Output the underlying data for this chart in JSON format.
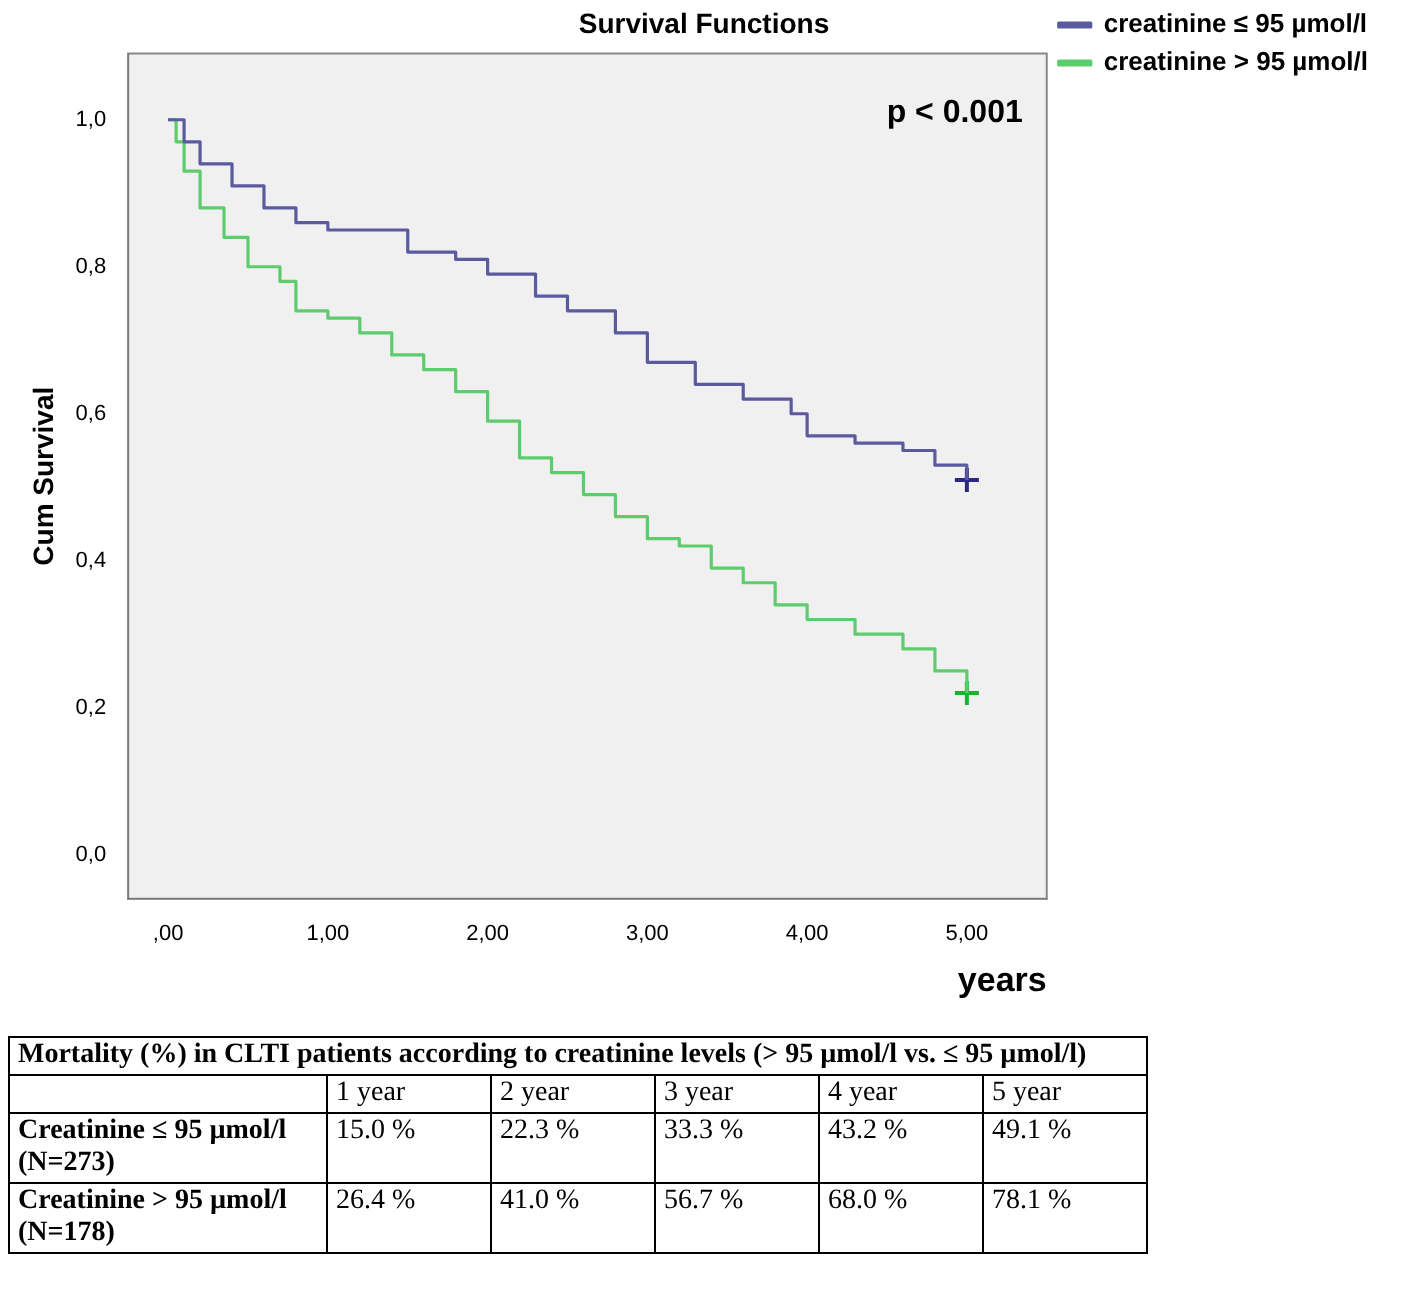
{
  "chart_data": {
    "type": "step",
    "title": "Survival Functions",
    "xlabel": "years",
    "ylabel": "Cum Survival",
    "xlim": [
      -0.25,
      5.5
    ],
    "ylim": [
      -0.06,
      1.09
    ],
    "xticks": [
      {
        "value": 0,
        "label": ",00"
      },
      {
        "value": 1,
        "label": "1,00"
      },
      {
        "value": 2,
        "label": "2,00"
      },
      {
        "value": 3,
        "label": "3,00"
      },
      {
        "value": 4,
        "label": "4,00"
      },
      {
        "value": 5,
        "label": "5,00"
      }
    ],
    "yticks": [
      {
        "value": 0,
        "label": "0,0"
      },
      {
        "value": 0.2,
        "label": "0,2"
      },
      {
        "value": 0.4,
        "label": "0,4"
      },
      {
        "value": 0.6,
        "label": "0,6"
      },
      {
        "value": 0.8,
        "label": "0,8"
      },
      {
        "value": 1,
        "label": "1,0"
      }
    ],
    "legend": "top right",
    "grid": false,
    "series": [
      {
        "name": "creatinine ≤ 95 µmol/l",
        "color": "#5a5aa0",
        "x": [
          0,
          0.1,
          0.2,
          0.4,
          0.6,
          0.8,
          1.0,
          1.5,
          1.8,
          2.0,
          2.3,
          2.5,
          2.8,
          3.0,
          3.3,
          3.6,
          3.9,
          4.0,
          4.3,
          4.6,
          4.8,
          5.0
        ],
        "values": [
          1.0,
          0.97,
          0.94,
          0.91,
          0.88,
          0.86,
          0.85,
          0.82,
          0.81,
          0.79,
          0.76,
          0.74,
          0.71,
          0.67,
          0.64,
          0.62,
          0.6,
          0.57,
          0.56,
          0.55,
          0.53,
          0.51
        ]
      },
      {
        "name": "creatinine > 95 µmol/l",
        "color": "#5ccc6c",
        "x": [
          0,
          0.05,
          0.1,
          0.2,
          0.35,
          0.5,
          0.7,
          0.8,
          1.0,
          1.2,
          1.4,
          1.6,
          1.8,
          2.0,
          2.2,
          2.4,
          2.6,
          2.8,
          3.0,
          3.2,
          3.4,
          3.6,
          3.8,
          4.0,
          4.3,
          4.6,
          4.8,
          5.0
        ],
        "values": [
          1.0,
          0.97,
          0.93,
          0.88,
          0.84,
          0.8,
          0.78,
          0.74,
          0.73,
          0.71,
          0.68,
          0.66,
          0.63,
          0.59,
          0.54,
          0.52,
          0.49,
          0.46,
          0.43,
          0.42,
          0.39,
          0.37,
          0.34,
          0.32,
          0.3,
          0.28,
          0.25,
          0.22
        ]
      },
      {
        "type": "scatter",
        "marker": "cross",
        "color": "#2a2a80",
        "x": [
          5.0
        ],
        "values": [
          0.51
        ]
      },
      {
        "type": "scatter",
        "marker": "cross",
        "color": "#20b030",
        "x": [
          5.0
        ],
        "values": [
          0.22
        ]
      }
    ],
    "annotations": [
      "p < 0.001",
      "Mortality (%) in CLTI patients according to creatinine levels (> 95 µmol/l vs. ≤ 95 µmol/l)",
      "1 year",
      "2 year",
      "3 year",
      "4 year",
      "5 year",
      "Creatinine ≤ 95 µmol/l (N=273)",
      "15.0 %",
      "22.3 %",
      "33.3 %",
      "43.2 %",
      "49.1 %",
      "Creatinine > 95 µmol/l (N=178)",
      "26.4 %",
      "41.0 %",
      "56.7 %",
      "68.0 %",
      "78.1 %"
    ]
  }
}
